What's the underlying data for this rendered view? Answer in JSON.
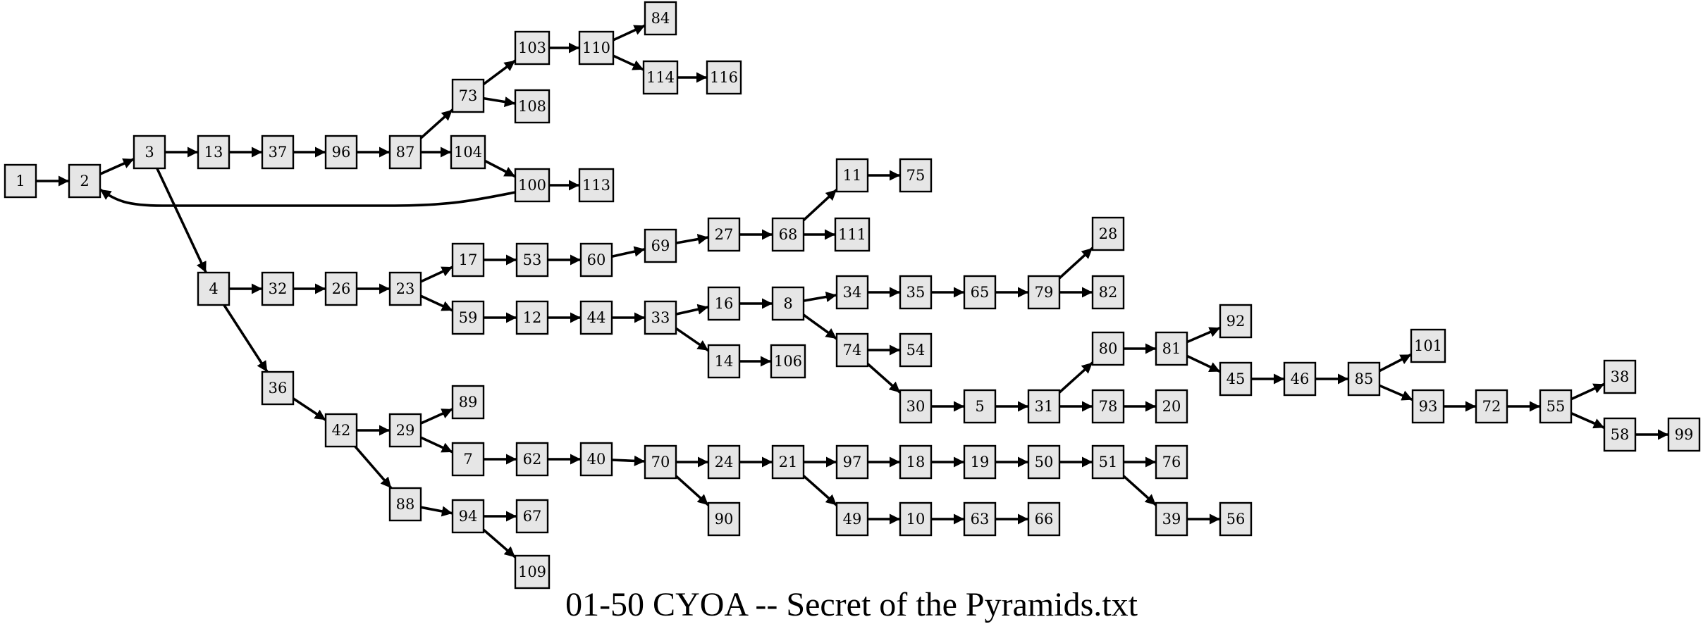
{
  "caption": "01-50 CYOA -- Secret of the Pyramids.txt",
  "nodes": [
    "1",
    "2",
    "3",
    "13",
    "37",
    "96",
    "87",
    "73",
    "103",
    "110",
    "84",
    "114",
    "116",
    "108",
    "104",
    "100",
    "113",
    "4",
    "32",
    "26",
    "23",
    "17",
    "53",
    "60",
    "69",
    "27",
    "68",
    "11",
    "75",
    "111",
    "59",
    "12",
    "44",
    "33",
    "16",
    "8",
    "34",
    "35",
    "65",
    "79",
    "28",
    "82",
    "74",
    "54",
    "30",
    "5",
    "31",
    "80",
    "81",
    "92",
    "45",
    "46",
    "85",
    "101",
    "93",
    "72",
    "55",
    "38",
    "58",
    "99",
    "78",
    "20",
    "14",
    "106",
    "36",
    "42",
    "29",
    "89",
    "7",
    "62",
    "40",
    "70",
    "24",
    "21",
    "97",
    "18",
    "19",
    "50",
    "51",
    "76",
    "39",
    "56",
    "49",
    "10",
    "63",
    "66",
    "90",
    "88",
    "94",
    "67",
    "109"
  ],
  "edges": [
    [
      "1",
      "2"
    ],
    [
      "2",
      "3"
    ],
    [
      "3",
      "13"
    ],
    [
      "13",
      "37"
    ],
    [
      "37",
      "96"
    ],
    [
      "96",
      "87"
    ],
    [
      "87",
      "73"
    ],
    [
      "87",
      "104"
    ],
    [
      "73",
      "103"
    ],
    [
      "73",
      "108"
    ],
    [
      "103",
      "110"
    ],
    [
      "110",
      "84"
    ],
    [
      "110",
      "114"
    ],
    [
      "114",
      "116"
    ],
    [
      "104",
      "100"
    ],
    [
      "100",
      "113"
    ],
    [
      "100",
      "2"
    ],
    [
      "3",
      "4"
    ],
    [
      "4",
      "32"
    ],
    [
      "32",
      "26"
    ],
    [
      "26",
      "23"
    ],
    [
      "23",
      "17"
    ],
    [
      "23",
      "59"
    ],
    [
      "17",
      "53"
    ],
    [
      "53",
      "60"
    ],
    [
      "60",
      "69"
    ],
    [
      "69",
      "27"
    ],
    [
      "27",
      "68"
    ],
    [
      "68",
      "11"
    ],
    [
      "68",
      "111"
    ],
    [
      "11",
      "75"
    ],
    [
      "59",
      "12"
    ],
    [
      "12",
      "44"
    ],
    [
      "44",
      "33"
    ],
    [
      "33",
      "16"
    ],
    [
      "33",
      "14"
    ],
    [
      "14",
      "106"
    ],
    [
      "16",
      "8"
    ],
    [
      "8",
      "34"
    ],
    [
      "8",
      "74"
    ],
    [
      "34",
      "35"
    ],
    [
      "35",
      "65"
    ],
    [
      "65",
      "79"
    ],
    [
      "79",
      "28"
    ],
    [
      "79",
      "82"
    ],
    [
      "74",
      "54"
    ],
    [
      "74",
      "30"
    ],
    [
      "30",
      "5"
    ],
    [
      "5",
      "31"
    ],
    [
      "31",
      "80"
    ],
    [
      "31",
      "78"
    ],
    [
      "78",
      "20"
    ],
    [
      "80",
      "81"
    ],
    [
      "81",
      "92"
    ],
    [
      "81",
      "45"
    ],
    [
      "45",
      "46"
    ],
    [
      "46",
      "85"
    ],
    [
      "85",
      "101"
    ],
    [
      "85",
      "93"
    ],
    [
      "93",
      "72"
    ],
    [
      "72",
      "55"
    ],
    [
      "55",
      "38"
    ],
    [
      "55",
      "58"
    ],
    [
      "58",
      "99"
    ],
    [
      "4",
      "36"
    ],
    [
      "36",
      "42"
    ],
    [
      "42",
      "29"
    ],
    [
      "42",
      "88"
    ],
    [
      "29",
      "89"
    ],
    [
      "29",
      "7"
    ],
    [
      "7",
      "62"
    ],
    [
      "62",
      "40"
    ],
    [
      "40",
      "70"
    ],
    [
      "70",
      "24"
    ],
    [
      "70",
      "90"
    ],
    [
      "24",
      "21"
    ],
    [
      "21",
      "97"
    ],
    [
      "21",
      "49"
    ],
    [
      "97",
      "18"
    ],
    [
      "18",
      "19"
    ],
    [
      "19",
      "50"
    ],
    [
      "50",
      "51"
    ],
    [
      "51",
      "76"
    ],
    [
      "51",
      "39"
    ],
    [
      "39",
      "56"
    ],
    [
      "49",
      "10"
    ],
    [
      "10",
      "63"
    ],
    [
      "63",
      "66"
    ],
    [
      "88",
      "94"
    ],
    [
      "94",
      "67"
    ],
    [
      "94",
      "109"
    ]
  ]
}
